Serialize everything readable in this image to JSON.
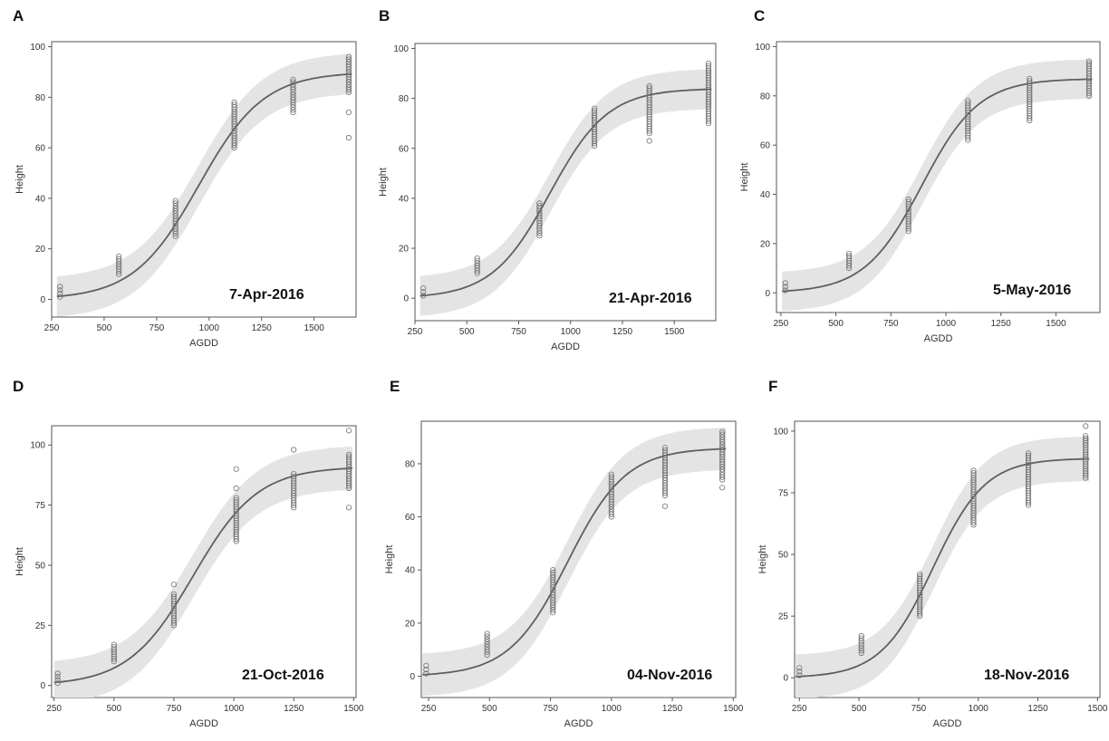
{
  "colors": {
    "band": "#e4e4e4",
    "fit": "#5f5f5f",
    "points": "#707070",
    "frame": "#555555"
  },
  "chart_data": [
    {
      "type": "scatter",
      "panel": "A",
      "date": "7-Apr-2016",
      "xlabel": "AGDD",
      "ylabel": "Height",
      "xlim": [
        250,
        1700
      ],
      "ylim": [
        -7,
        102
      ],
      "xticks": [
        250,
        500,
        750,
        1000,
        1250,
        1500
      ],
      "yticks": [
        0,
        20,
        40,
        60,
        80,
        100
      ],
      "fit": {
        "lower": 0,
        "upper": 90,
        "x_mid": 950,
        "scale": 155
      },
      "band_halfwidth": 8,
      "groups": [
        {
          "x": 290,
          "min": 1,
          "max": 5,
          "outliers": []
        },
        {
          "x": 570,
          "min": 10,
          "max": 17,
          "outliers": []
        },
        {
          "x": 840,
          "min": 25,
          "max": 39,
          "outliers": []
        },
        {
          "x": 1120,
          "min": 60,
          "max": 78,
          "outliers": []
        },
        {
          "x": 1400,
          "min": 74,
          "max": 87,
          "outliers": []
        },
        {
          "x": 1665,
          "min": 82,
          "max": 96,
          "outliers": [
            74,
            64
          ]
        }
      ]
    },
    {
      "type": "scatter",
      "panel": "B",
      "date": "21-Apr-2016",
      "xlabel": "AGDD",
      "ylabel": "Height",
      "xlim": [
        250,
        1700
      ],
      "ylim": [
        -9,
        102
      ],
      "xticks": [
        250,
        500,
        750,
        1000,
        1250,
        1500
      ],
      "yticks": [
        0,
        20,
        40,
        60,
        80,
        100
      ],
      "fit": {
        "lower": 0,
        "upper": 84,
        "x_mid": 900,
        "scale": 140
      },
      "band_halfwidth": 8,
      "groups": [
        {
          "x": 290,
          "min": 1,
          "max": 4,
          "outliers": []
        },
        {
          "x": 550,
          "min": 10,
          "max": 16,
          "outliers": []
        },
        {
          "x": 850,
          "min": 25,
          "max": 38,
          "outliers": []
        },
        {
          "x": 1115,
          "min": 61,
          "max": 76,
          "outliers": []
        },
        {
          "x": 1380,
          "min": 66,
          "max": 85,
          "outliers": [
            63
          ]
        },
        {
          "x": 1665,
          "min": 70,
          "max": 94,
          "outliers": []
        }
      ]
    },
    {
      "type": "scatter",
      "panel": "C",
      "date": "5-May-2016",
      "xlabel": "AGDD",
      "ylabel": "Height",
      "xlim": [
        230,
        1700
      ],
      "ylim": [
        -8,
        102
      ],
      "xticks": [
        250,
        500,
        750,
        1000,
        1250,
        1500
      ],
      "yticks": [
        0,
        20,
        40,
        60,
        80,
        100
      ],
      "fit": {
        "lower": 0,
        "upper": 87,
        "x_mid": 890,
        "scale": 130
      },
      "band_halfwidth": 8,
      "groups": [
        {
          "x": 270,
          "min": 1,
          "max": 4,
          "outliers": []
        },
        {
          "x": 560,
          "min": 10,
          "max": 16,
          "outliers": []
        },
        {
          "x": 830,
          "min": 25,
          "max": 38,
          "outliers": []
        },
        {
          "x": 1100,
          "min": 62,
          "max": 78,
          "outliers": []
        },
        {
          "x": 1380,
          "min": 70,
          "max": 87,
          "outliers": []
        },
        {
          "x": 1650,
          "min": 80,
          "max": 94,
          "outliers": []
        }
      ]
    },
    {
      "type": "scatter",
      "panel": "D",
      "date": "21-Oct-2016",
      "xlabel": "AGDD",
      "ylabel": "Height",
      "xlim": [
        240,
        1510
      ],
      "ylim": [
        -5,
        108
      ],
      "xticks": [
        250,
        500,
        750,
        1000,
        1250,
        1500
      ],
      "yticks": [
        0,
        25,
        50,
        75,
        100
      ],
      "fit": {
        "lower": 0,
        "upper": 91,
        "x_mid": 830,
        "scale": 135
      },
      "band_halfwidth": 9,
      "groups": [
        {
          "x": 265,
          "min": 1,
          "max": 5,
          "outliers": []
        },
        {
          "x": 500,
          "min": 10,
          "max": 17,
          "outliers": []
        },
        {
          "x": 750,
          "min": 25,
          "max": 38,
          "outliers": [
            42
          ]
        },
        {
          "x": 1010,
          "min": 60,
          "max": 78,
          "outliers": [
            82,
            90
          ]
        },
        {
          "x": 1250,
          "min": 74,
          "max": 88,
          "outliers": [
            98
          ]
        },
        {
          "x": 1480,
          "min": 82,
          "max": 96,
          "outliers": [
            74,
            106
          ]
        }
      ]
    },
    {
      "type": "scatter",
      "panel": "E",
      "date": "04-Nov-2016",
      "xlabel": "AGDD",
      "ylabel": "Height",
      "xlim": [
        220,
        1510
      ],
      "ylim": [
        -8,
        96
      ],
      "xticks": [
        250,
        500,
        750,
        1000,
        1250,
        1500
      ],
      "yticks": [
        0,
        20,
        40,
        60,
        80
      ],
      "fit": {
        "lower": 0,
        "upper": 86,
        "x_mid": 820,
        "scale": 120
      },
      "band_halfwidth": 8,
      "groups": [
        {
          "x": 240,
          "min": 1,
          "max": 4,
          "outliers": []
        },
        {
          "x": 490,
          "min": 8,
          "max": 16,
          "outliers": []
        },
        {
          "x": 760,
          "min": 24,
          "max": 40,
          "outliers": []
        },
        {
          "x": 1000,
          "min": 60,
          "max": 76,
          "outliers": []
        },
        {
          "x": 1220,
          "min": 68,
          "max": 86,
          "outliers": [
            64
          ]
        },
        {
          "x": 1455,
          "min": 74,
          "max": 92,
          "outliers": [
            71
          ]
        }
      ]
    },
    {
      "type": "scatter",
      "panel": "F",
      "date": "18-Nov-2016",
      "xlabel": "AGDD",
      "ylabel": "Height",
      "xlim": [
        230,
        1510
      ],
      "ylim": [
        -8,
        104
      ],
      "xticks": [
        250,
        500,
        750,
        1000,
        1250,
        1500
      ],
      "yticks": [
        0,
        25,
        50,
        75,
        100
      ],
      "fit": {
        "lower": 0,
        "upper": 89,
        "x_mid": 810,
        "scale": 110
      },
      "band_halfwidth": 9,
      "groups": [
        {
          "x": 250,
          "min": 1,
          "max": 4,
          "outliers": []
        },
        {
          "x": 510,
          "min": 10,
          "max": 17,
          "outliers": []
        },
        {
          "x": 755,
          "min": 25,
          "max": 42,
          "outliers": []
        },
        {
          "x": 980,
          "min": 62,
          "max": 84,
          "outliers": []
        },
        {
          "x": 1210,
          "min": 70,
          "max": 91,
          "outliers": []
        },
        {
          "x": 1450,
          "min": 81,
          "max": 98,
          "outliers": [
            102
          ]
        }
      ]
    }
  ]
}
